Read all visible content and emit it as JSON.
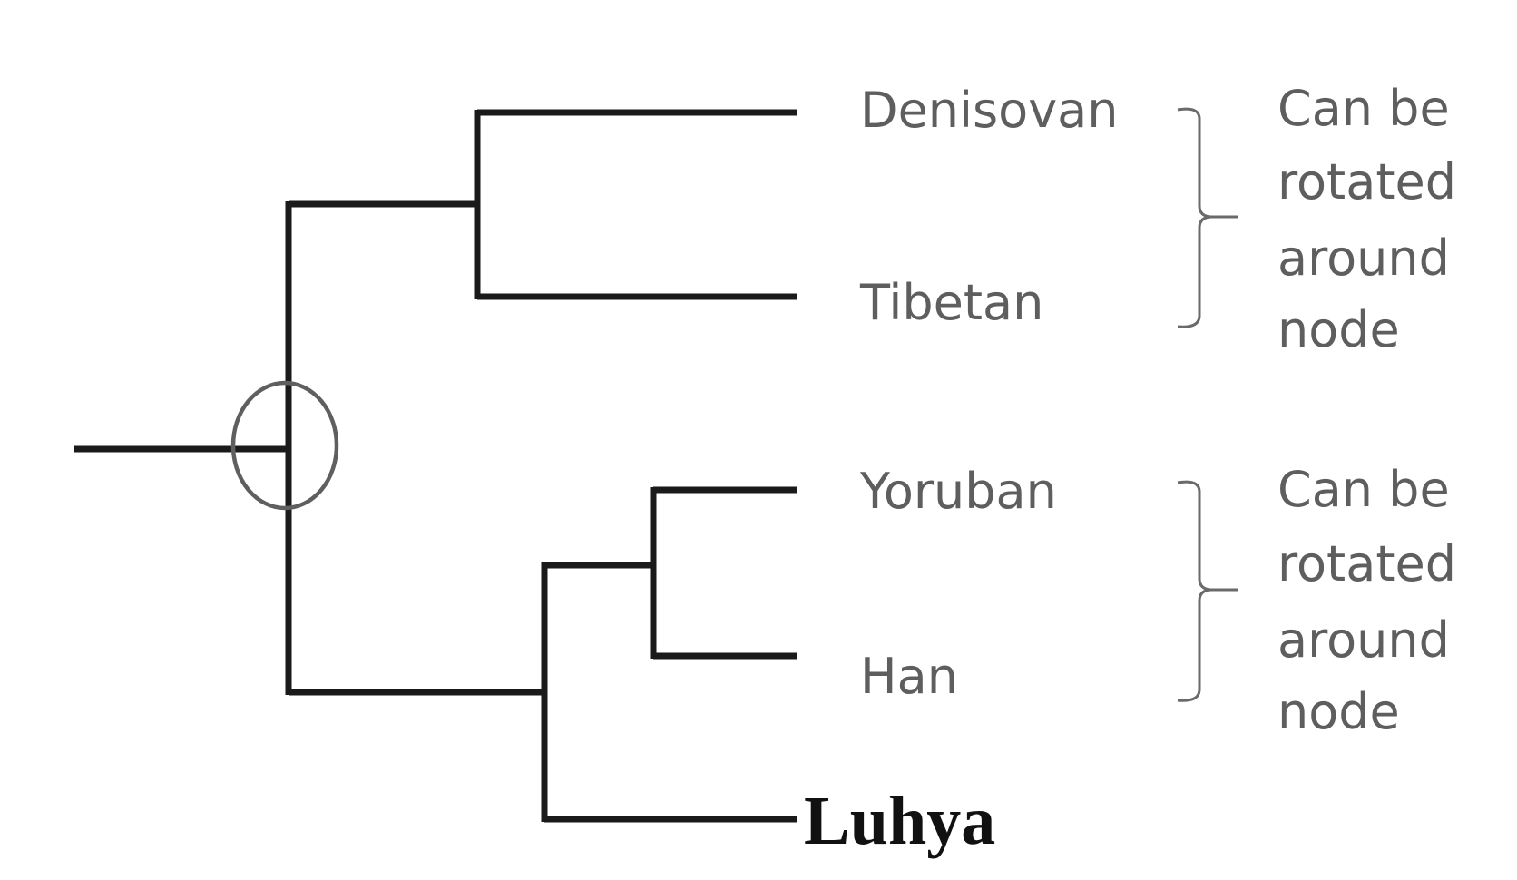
{
  "tree": {
    "taxa": {
      "denisovan": "Denisovan",
      "tibetan": "Tibetan",
      "yoruban": "Yoruban",
      "han": "Han",
      "luhya": "Luhya"
    },
    "annotations": {
      "upper": [
        "Can be",
        "rotated",
        "around",
        "node"
      ],
      "lower": [
        "Can be",
        "rotated",
        "around",
        "node"
      ]
    }
  },
  "colors": {
    "branch": "#1a1a1a",
    "node_ring": "#5f5f5f",
    "label_text": "#5e5e5e",
    "outgroup_text": "#111111"
  }
}
